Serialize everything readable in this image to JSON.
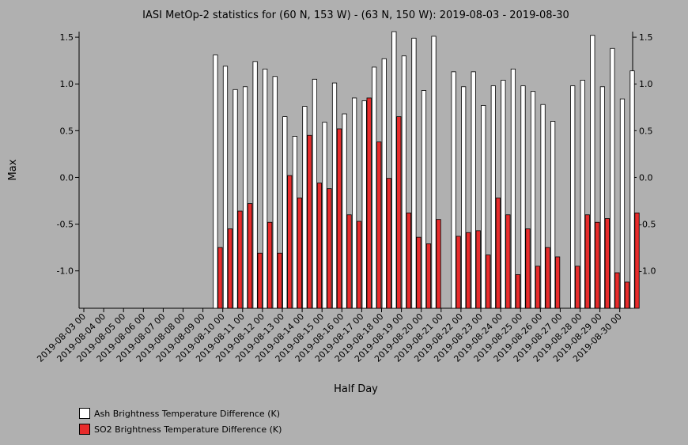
{
  "chart_data": {
    "type": "bar",
    "title": "IASI MetOp-2 statistics for (60 N, 153 W) - (63 N, 150 W): 2019-08-03 - 2019-08-30",
    "xlabel": "Half Day",
    "ylabel": "Max",
    "ylim": [
      -1.4,
      1.56
    ],
    "yticks": [
      -1.0,
      -0.5,
      0.0,
      0.5,
      1.0,
      1.5
    ],
    "ytick_labels": [
      "-1.0",
      "-0.5",
      "0.0",
      "0.5",
      "1.0",
      "1.5"
    ],
    "categories": [
      "2019-08-03 00",
      "2019-08-03 12",
      "2019-08-04 00",
      "2019-08-04 12",
      "2019-08-05 00",
      "2019-08-05 12",
      "2019-08-06 00",
      "2019-08-06 12",
      "2019-08-07 00",
      "2019-08-07 12",
      "2019-08-08 00",
      "2019-08-08 12",
      "2019-08-09 00",
      "2019-08-09 12",
      "2019-08-10 00",
      "2019-08-10 12",
      "2019-08-11 00",
      "2019-08-11 12",
      "2019-08-12 00",
      "2019-08-12 12",
      "2019-08-13 00",
      "2019-08-13 12",
      "2019-08-14 00",
      "2019-08-14 12",
      "2019-08-15 00",
      "2019-08-15 12",
      "2019-08-16 00",
      "2019-08-16 12",
      "2019-08-17 00",
      "2019-08-17 12",
      "2019-08-18 00",
      "2019-08-18 12",
      "2019-08-19 00",
      "2019-08-19 12",
      "2019-08-20 00",
      "2019-08-20 12",
      "2019-08-21 00",
      "2019-08-21 12",
      "2019-08-22 00",
      "2019-08-22 12",
      "2019-08-23 00",
      "2019-08-23 12",
      "2019-08-24 00",
      "2019-08-24 12",
      "2019-08-25 00",
      "2019-08-25 12",
      "2019-08-26 00",
      "2019-08-26 12",
      "2019-08-27 00",
      "2019-08-27 12",
      "2019-08-28 00",
      "2019-08-28 12",
      "2019-08-29 00",
      "2019-08-29 12",
      "2019-08-30 00",
      "2019-08-30 12"
    ],
    "tick_labels": [
      "2019-08-03 00",
      "2019-08-04 00",
      "2019-08-05 00",
      "2019-08-06 00",
      "2019-08-07 00",
      "2019-08-08 00",
      "2019-08-09 00",
      "2019-08-10 00",
      "2019-08-11 00",
      "2019-08-12 00",
      "2019-08-13 00",
      "2019-08-14 00",
      "2019-08-15 00",
      "2019-08-16 00",
      "2019-08-17 00",
      "2019-08-18 00",
      "2019-08-19 00",
      "2019-08-20 00",
      "2019-08-21 00",
      "2019-08-22 00",
      "2019-08-23 00",
      "2019-08-24 00",
      "2019-08-25 00",
      "2019-08-26 00",
      "2019-08-27 00",
      "2019-08-28 00",
      "2019-08-29 00",
      "2019-08-30 00"
    ],
    "series": [
      {
        "name": "Ash Brightness Temperature Difference (K)",
        "color": "#ffffff",
        "values": [
          null,
          null,
          null,
          null,
          null,
          null,
          null,
          null,
          null,
          null,
          null,
          null,
          null,
          1.31,
          1.19,
          0.94,
          0.97,
          1.24,
          1.16,
          1.08,
          0.65,
          0.44,
          0.76,
          1.05,
          0.59,
          1.01,
          0.68,
          0.85,
          0.82,
          1.18,
          1.27,
          1.56,
          1.3,
          1.49,
          0.93,
          1.51,
          null,
          1.13,
          0.97,
          1.13,
          0.77,
          0.98,
          1.04,
          1.16,
          0.98,
          0.92,
          0.78,
          0.6,
          null,
          0.98,
          1.04,
          1.52,
          0.97,
          1.38,
          0.84,
          1.14
        ]
      },
      {
        "name": "SO2 Brightness Temperature Difference (K)",
        "color": "#e82c2c",
        "values": [
          null,
          null,
          null,
          null,
          null,
          null,
          null,
          null,
          null,
          null,
          null,
          null,
          null,
          -0.75,
          -0.55,
          -0.36,
          -0.28,
          -0.81,
          -0.48,
          -0.81,
          0.02,
          -0.22,
          0.45,
          -0.06,
          -0.12,
          0.52,
          -0.4,
          -0.47,
          0.85,
          0.38,
          -0.01,
          0.65,
          -0.38,
          -0.64,
          -0.71,
          -0.45,
          null,
          -0.63,
          -0.59,
          -0.57,
          -0.83,
          -0.22,
          -0.4,
          -1.04,
          -0.55,
          -0.95,
          -0.75,
          -0.85,
          null,
          -0.95,
          -0.4,
          -0.48,
          -0.44,
          -1.02,
          -1.12,
          -0.38
        ]
      }
    ],
    "grid": false,
    "legend_position": "bottom-left"
  }
}
